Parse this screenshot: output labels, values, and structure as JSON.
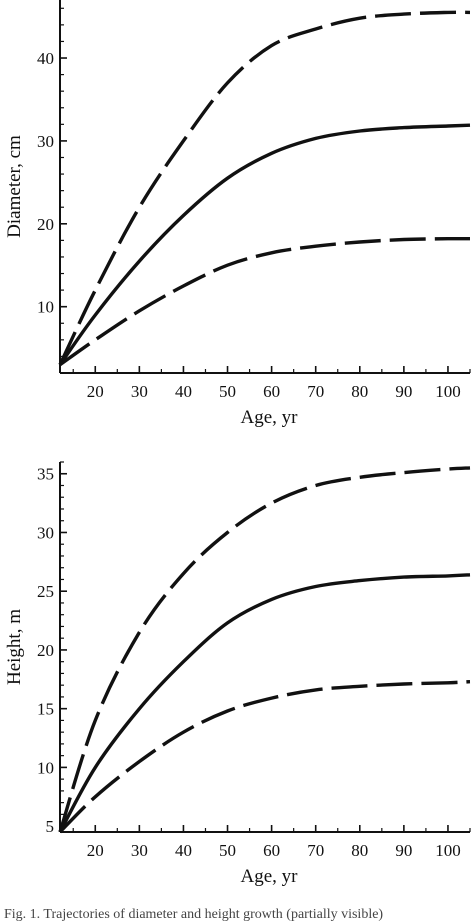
{
  "caption": "Fig. 1. Trajectories of diameter and height growth (partially visible)",
  "chart_data": [
    {
      "type": "line",
      "title": "",
      "xlabel": "Age, yr",
      "ylabel": "Diameter, cm",
      "xlim": [
        12,
        105
      ],
      "ylim": [
        2,
        47
      ],
      "xticks": [
        20,
        30,
        40,
        50,
        60,
        70,
        80,
        90,
        100
      ],
      "yticks": [
        10,
        20,
        30,
        40
      ],
      "grid": false,
      "legend": "none",
      "series": [
        {
          "style": "dashed",
          "x": [
            12,
            20,
            30,
            40,
            50,
            60,
            70,
            80,
            90,
            100,
            105
          ],
          "y": [
            3,
            12,
            22,
            30,
            37,
            41.5,
            43.5,
            44.8,
            45.3,
            45.5,
            45.5
          ]
        },
        {
          "style": "solid",
          "x": [
            12,
            20,
            30,
            40,
            50,
            60,
            70,
            80,
            90,
            100,
            105
          ],
          "y": [
            3,
            9,
            15.5,
            21,
            25.5,
            28.5,
            30.3,
            31.2,
            31.6,
            31.8,
            31.9
          ]
        },
        {
          "style": "dashed",
          "x": [
            12,
            20,
            30,
            40,
            50,
            60,
            70,
            80,
            90,
            100,
            105
          ],
          "y": [
            3,
            6,
            9.5,
            12.5,
            15,
            16.5,
            17.3,
            17.8,
            18.1,
            18.2,
            18.2
          ]
        }
      ]
    },
    {
      "type": "line",
      "title": "",
      "xlabel": "Age, yr",
      "ylabel": "Height, m",
      "xlim": [
        12,
        105
      ],
      "ylim": [
        4.5,
        36
      ],
      "xticks": [
        20,
        30,
        40,
        50,
        60,
        70,
        80,
        90,
        100
      ],
      "yticks": [
        5,
        10,
        15,
        20,
        25,
        30,
        35
      ],
      "grid": false,
      "legend": "none",
      "series": [
        {
          "style": "dashed",
          "x": [
            12,
            20,
            30,
            40,
            50,
            60,
            70,
            80,
            90,
            100,
            105
          ],
          "y": [
            4.5,
            14,
            21.5,
            26.5,
            30,
            32.5,
            34,
            34.7,
            35.1,
            35.4,
            35.5
          ]
        },
        {
          "style": "solid",
          "x": [
            12,
            20,
            30,
            40,
            50,
            60,
            70,
            80,
            90,
            100,
            105
          ],
          "y": [
            4.5,
            10,
            15,
            19,
            22.3,
            24.3,
            25.4,
            25.9,
            26.2,
            26.3,
            26.4
          ]
        },
        {
          "style": "dashed",
          "x": [
            12,
            20,
            30,
            40,
            50,
            60,
            70,
            80,
            90,
            100,
            105
          ],
          "y": [
            4.5,
            7.5,
            10.5,
            13,
            14.8,
            15.9,
            16.6,
            16.9,
            17.1,
            17.2,
            17.3
          ]
        }
      ]
    }
  ]
}
